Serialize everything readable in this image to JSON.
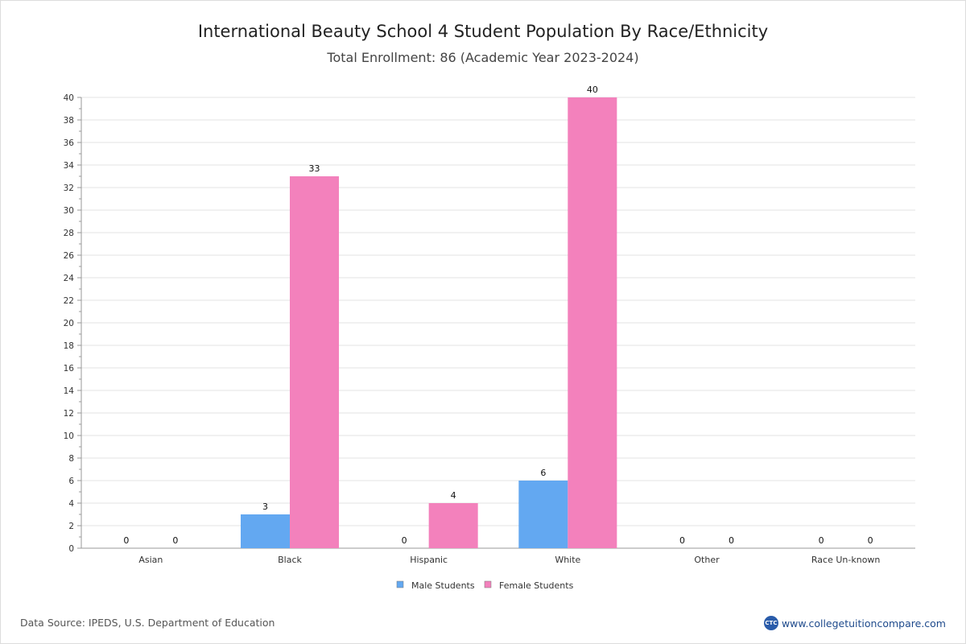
{
  "header": {
    "title": "International Beauty School 4 Student Population By Race/Ethnicity",
    "subtitle": "Total Enrollment: 86 (Academic Year 2023-2024)"
  },
  "footer": {
    "source": "Data Source: IPEDS, U.S. Department of Education",
    "brand_text": "www.collegetuitioncompare.com",
    "brand_logo_text": "CTC"
  },
  "colors": {
    "male": "#63a8f1",
    "female": "#f381bc",
    "grid": "#e3e3e3",
    "axis": "#999999",
    "text": "#333333"
  },
  "chart_data": {
    "type": "bar",
    "title": "International Beauty School 4 Student Population By Race/Ethnicity",
    "subtitle": "Total Enrollment: 86 (Academic Year 2023-2024)",
    "categories": [
      "Asian",
      "Black",
      "Hispanic",
      "White",
      "Other",
      "Race Un-known"
    ],
    "series": [
      {
        "name": "Male Students",
        "values": [
          0,
          3,
          0,
          6,
          0,
          0
        ],
        "color": "#63a8f1"
      },
      {
        "name": "Female Students",
        "values": [
          0,
          33,
          4,
          40,
          0,
          0
        ],
        "color": "#f381bc"
      }
    ],
    "ylim": [
      0,
      40
    ],
    "yticks": [
      0,
      2,
      4,
      6,
      8,
      10,
      12,
      14,
      16,
      18,
      20,
      22,
      24,
      26,
      28,
      30,
      32,
      34,
      36,
      38,
      40
    ],
    "grid": true,
    "legend": "bottom-center",
    "xlabel": "",
    "ylabel": ""
  }
}
